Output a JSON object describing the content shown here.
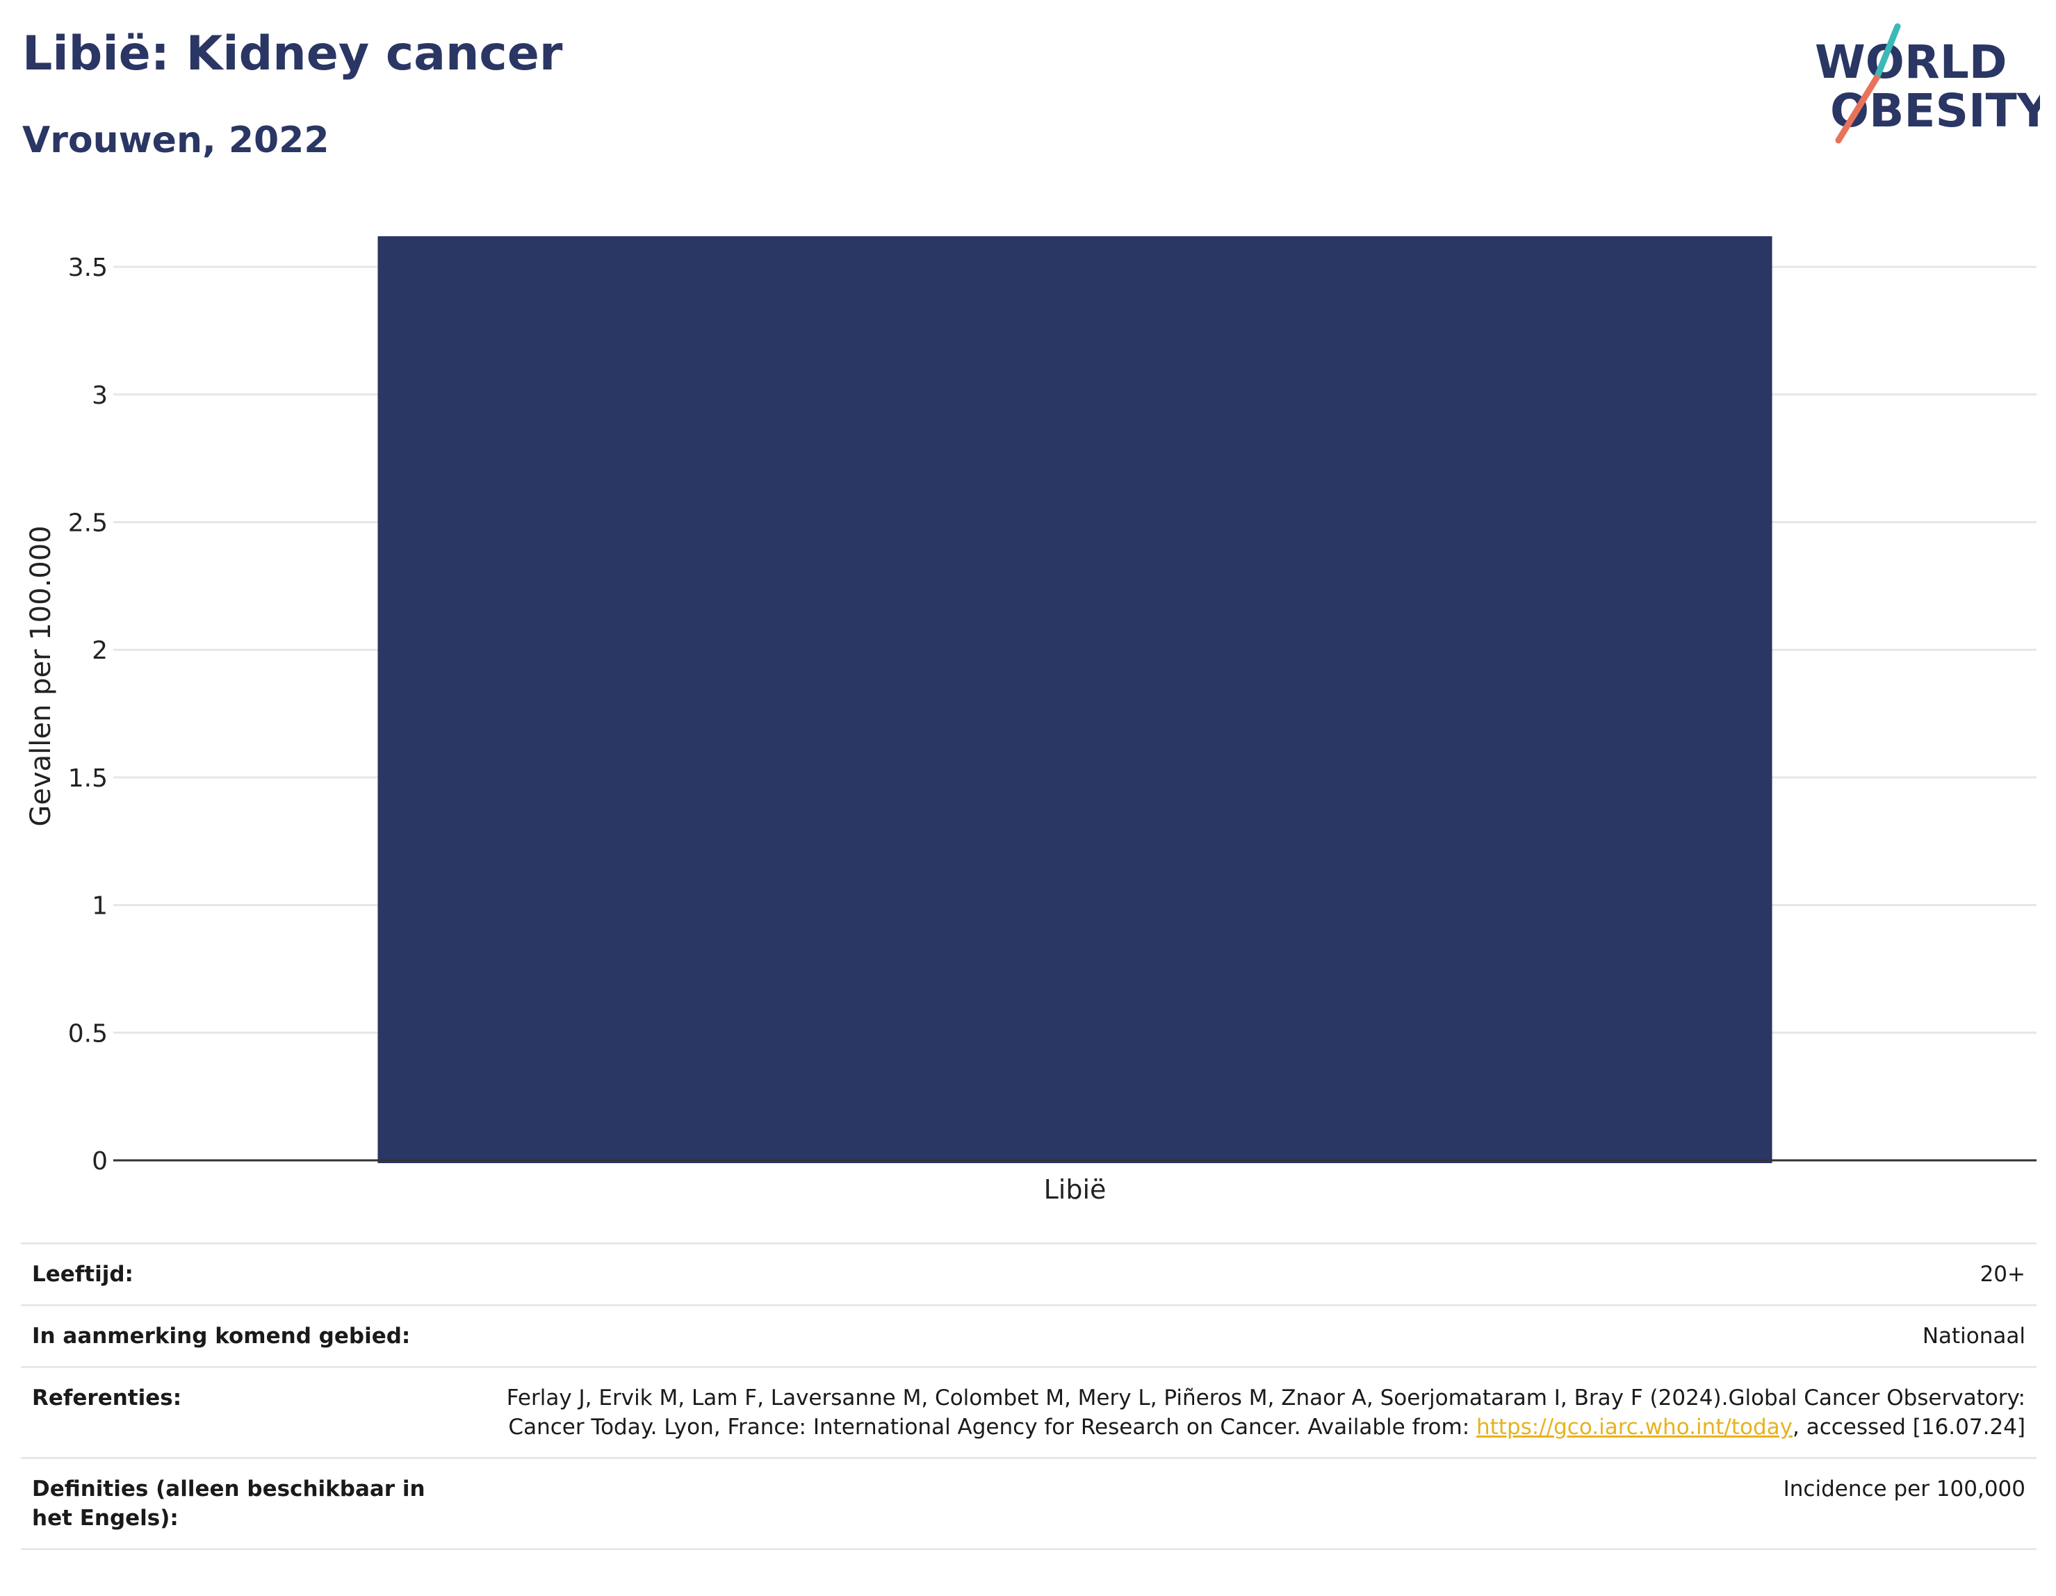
{
  "header": {
    "title": "Libië: Kidney cancer",
    "subtitle": "Vrouwen, 2022"
  },
  "logo": {
    "line1": "WORLD",
    "line2": "OBESITY",
    "colors": {
      "text": "#2a3663",
      "slash_top": "#3bb8b8",
      "slash_bottom": "#e8735a"
    }
  },
  "chart_data": {
    "type": "bar",
    "categories": [
      "Libië"
    ],
    "values": [
      3.62
    ],
    "ylabel": "Gevallen per 100.000",
    "xlabel": "",
    "ylim": [
      0,
      3.62
    ],
    "yticks": [
      0,
      0.5,
      1,
      1.5,
      2,
      2.5,
      3,
      3.5
    ],
    "ytick_labels": [
      "0",
      "0.5",
      "1",
      "1.5",
      "2",
      "2.5",
      "3",
      "3.5"
    ],
    "grid": true,
    "bar_color": "#2a3663"
  },
  "info": {
    "age": {
      "label": "Leeftijd:",
      "value": "20+"
    },
    "area": {
      "label": "In aanmerking komend gebied:",
      "value": "Nationaal"
    },
    "references": {
      "label": "Referenties:",
      "text_before": "Ferlay J, Ervik M, Lam F, Laversanne M, Colombet M, Mery L, Piñeros M, Znaor A, Soerjomataram I, Bray F (2024).Global Cancer Observatory: Cancer Today. Lyon, France: International Agency for Research on Cancer. Available from: ",
      "link": "https://gco.iarc.who.int/today",
      "text_after": ", accessed [16.07.24]"
    },
    "definitions": {
      "label": "Definities (alleen beschikbaar in het Engels):",
      "value": "Incidence per 100,000"
    }
  }
}
